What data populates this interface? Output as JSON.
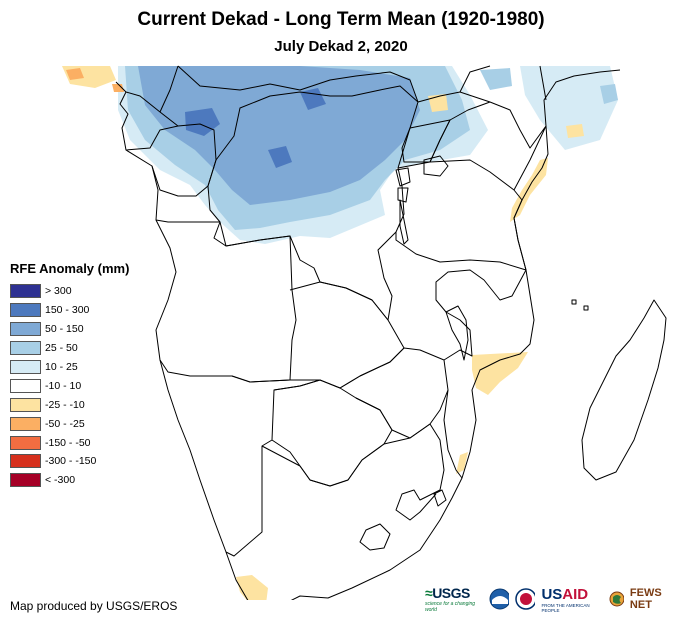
{
  "map": {
    "title": "Current Dekad - Long Term Mean (1920-1980)",
    "subtitle": "July Dekad 2, 2020"
  },
  "legend": {
    "title": "RFE Anomaly (mm)",
    "items": [
      {
        "label": "> 300",
        "color": "#2e3192"
      },
      {
        "label": "150 - 300",
        "color": "#4d79be"
      },
      {
        "label": "50 - 150",
        "color": "#7fa9d5"
      },
      {
        "label": "25 - 50",
        "color": "#a8cfe6"
      },
      {
        "label": "10 - 25",
        "color": "#d6ebf5"
      },
      {
        "label": "-10 - 10",
        "color": "#ffffff"
      },
      {
        "label": "-25 - -10",
        "color": "#fde3a1"
      },
      {
        "label": "-50 - -25",
        "color": "#fbaf63"
      },
      {
        "label": "-150 - -50",
        "color": "#f26d41"
      },
      {
        "label": "-300 - -150",
        "color": "#d6301d"
      },
      {
        "label": "< -300",
        "color": "#a50026"
      }
    ]
  },
  "credit": "Map produced by USGS/EROS",
  "logos": {
    "usgs": "USGS",
    "usgs_tagline": "science for a changing world",
    "usaid_us": "US",
    "usaid_aid": "AID",
    "usaid_tagline": "FROM THE AMERICAN PEOPLE",
    "fews": "FEWS NET"
  }
}
